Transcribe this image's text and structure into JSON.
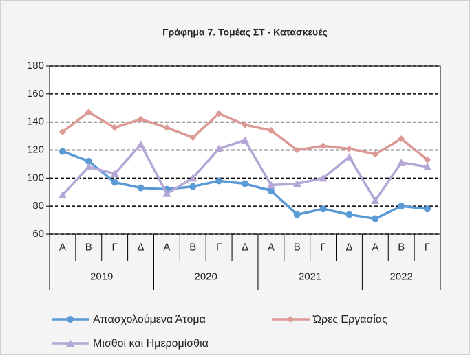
{
  "chart_data": {
    "type": "line",
    "title": "Γράφημα 7. Τομέας ΣΤ - Κατασκευές",
    "category_groups": [
      {
        "label": "2019",
        "categories": [
          "Α",
          "Β",
          "Γ",
          "Δ"
        ]
      },
      {
        "label": "2020",
        "categories": [
          "Α",
          "Β",
          "Γ",
          "Δ"
        ]
      },
      {
        "label": "2021",
        "categories": [
          "Α",
          "Β",
          "Γ",
          "Δ"
        ]
      },
      {
        "label": "2022",
        "categories": [
          "Α",
          "Β",
          "Γ"
        ]
      }
    ],
    "series": [
      {
        "name": "Απασχολούμενα Άτομα",
        "color": "#5b9bd5",
        "marker": "circle",
        "values": [
          119,
          112,
          97,
          93,
          92,
          94,
          98,
          96,
          91,
          74,
          78,
          74,
          71,
          80,
          78
        ]
      },
      {
        "name": "Ώρες Εργασίας",
        "color": "#dc9a96",
        "marker": "diamond",
        "values": [
          133,
          147,
          136,
          142,
          136,
          129,
          146,
          138,
          134,
          120,
          123,
          121,
          117,
          128,
          113
        ]
      },
      {
        "name": "Μισθοί και Ημερομίσθια",
        "color": "#b4a7d6",
        "marker": "triangle",
        "values": [
          88,
          108,
          103,
          124,
          89,
          100,
          121,
          127,
          95,
          96,
          100,
          115,
          84,
          111,
          108
        ]
      }
    ],
    "ylim": [
      60,
      180
    ],
    "yticks": [
      60,
      80,
      100,
      120,
      140,
      160,
      180
    ],
    "grid": true
  }
}
